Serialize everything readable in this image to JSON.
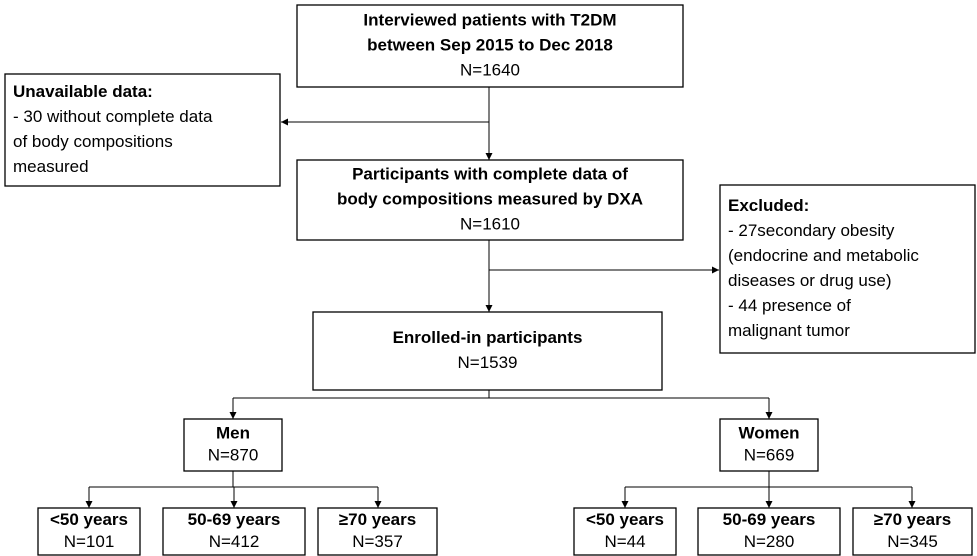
{
  "nodes": [
    {
      "title": [
        "Interviewed patients with T2DM",
        "between Sep 2015 to Dec 2018"
      ],
      "lines": [
        "N=1640"
      ]
    },
    {
      "title": [
        "Unavailable data:"
      ],
      "lines": [
        "- 30 without complete data",
        "of body compositions",
        "measured"
      ]
    },
    {
      "title": [
        "Participants with complete data of",
        "body compositions measured by DXA"
      ],
      "lines": [
        "N=1610"
      ]
    },
    {
      "title": [
        "Excluded:"
      ],
      "lines": [
        "- 27secondary obesity",
        "(endocrine and metabolic",
        "diseases or drug use)",
        "- 44 presence of",
        "malignant tumor"
      ]
    },
    {
      "title": [
        "Enrolled-in participants"
      ],
      "lines": [
        "N=1539"
      ]
    },
    {
      "title": [
        "Men"
      ],
      "lines": [
        "N=870"
      ]
    },
    {
      "title": [
        "Women"
      ],
      "lines": [
        "N=669"
      ]
    },
    {
      "title": [
        "<50 years"
      ],
      "lines": [
        "N=101"
      ]
    },
    {
      "title": [
        "50-69 years"
      ],
      "lines": [
        "N=412"
      ]
    },
    {
      "title": [
        "≥70 years"
      ],
      "lines": [
        "N=357"
      ]
    },
    {
      "title": [
        "<50 years"
      ],
      "lines": [
        "N=44"
      ]
    },
    {
      "title": [
        "50-69 years"
      ],
      "lines": [
        "N=280"
      ]
    },
    {
      "title": [
        "≥70 years"
      ],
      "lines": [
        "N=345"
      ]
    }
  ]
}
